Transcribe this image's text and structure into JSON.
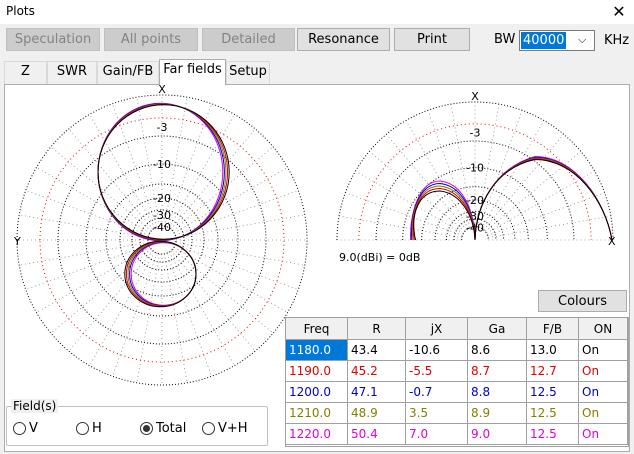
{
  "window": {
    "title": "Plots"
  },
  "toolbar": {
    "buttons": [
      "Speculation",
      "All points",
      "Detailed",
      "Resonance",
      "Print"
    ],
    "bw_label": "BW",
    "bw_value": "40000",
    "bw_unit": "KHz"
  },
  "tabs": [
    "Z",
    "SWR",
    "Gain/FB",
    "Far fields",
    "Setup"
  ],
  "polar_left": {
    "top_label": "X",
    "left_label": "Y",
    "ring_labels": [
      "-3",
      "-10",
      "-20",
      "-30",
      "-40"
    ]
  },
  "polar_right": {
    "top_label": "X",
    "right_label": "X",
    "ring_labels": [
      "-3",
      "-10",
      "-20",
      "-30",
      "-40"
    ],
    "reference": "9.0(dBi) = 0dB"
  },
  "colours_button": "Colours",
  "table": {
    "header": [
      "Freq",
      "R",
      "jX",
      "Ga",
      "F/B",
      "ON"
    ],
    "rows": [
      [
        "1180.0",
        "43.4",
        "-10.6",
        "8.6",
        "13.0",
        "On"
      ],
      [
        "1190.0",
        "45.2",
        "-5.5",
        "8.7",
        "12.7",
        "On"
      ],
      [
        "1200.0",
        "47.1",
        "-0.7",
        "8.8",
        "12.5",
        "On"
      ],
      [
        "1210.0",
        "48.9",
        "3.5",
        "8.9",
        "12.5",
        "On"
      ],
      [
        "1220.0",
        "50.4",
        "7.0",
        "9.0",
        "12.5",
        "On"
      ]
    ],
    "row_colors": [
      "#000000",
      "#e00000",
      "#0000c8",
      "#808000",
      "#e000e0"
    ]
  },
  "fields": {
    "title": "Field(s)",
    "options": [
      "V",
      "H",
      "Total",
      "V+H"
    ]
  }
}
